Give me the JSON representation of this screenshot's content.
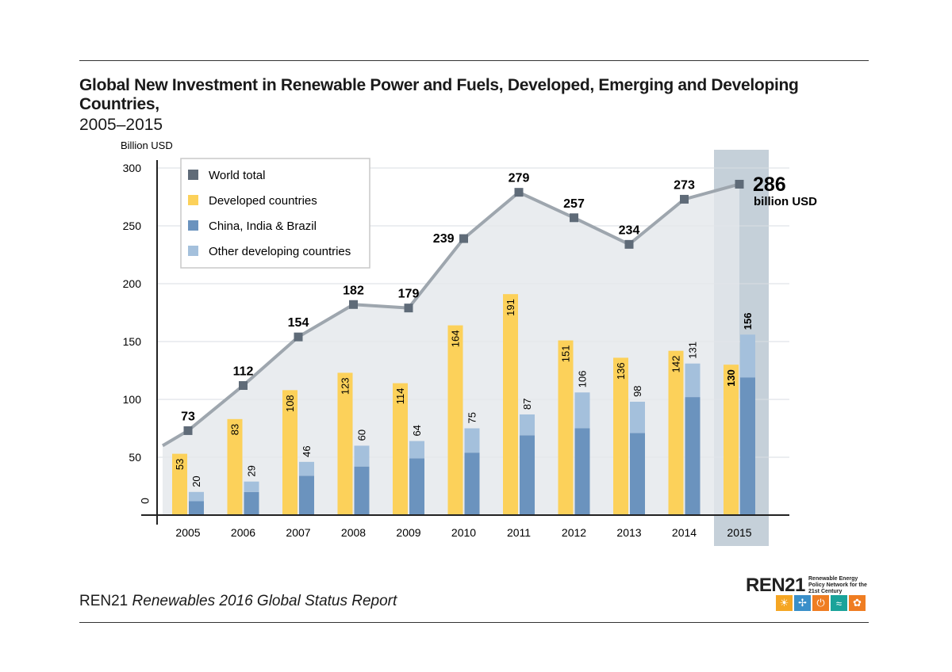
{
  "title": {
    "main": "Global New Investment in Renewable Power and Fuels, Developed, Emerging and Developing Countries,",
    "sub": "2005–2015"
  },
  "footer": {
    "org": "REN21",
    "publication": "Renewables 2016 Global Status Report"
  },
  "logo": {
    "word": "REN21",
    "tagline": "Renewable Energy Policy Network for the 21st Century",
    "icons": [
      {
        "name": "sun-icon",
        "glyph": "☀",
        "color": "#f5a623"
      },
      {
        "name": "wind-icon",
        "glyph": "✢",
        "color": "#3a8fc9"
      },
      {
        "name": "power-icon",
        "glyph": "⏻",
        "color": "#ef7d22"
      },
      {
        "name": "water-icon",
        "glyph": "≈",
        "color": "#1aa39a"
      },
      {
        "name": "leaf-icon",
        "glyph": "✿",
        "color": "#ef7d22"
      }
    ]
  },
  "chart_data": {
    "type": "bar",
    "ylabel": "Billion USD",
    "ylim": [
      0,
      300
    ],
    "yticks": [
      50,
      100,
      150,
      200,
      250,
      300
    ],
    "baseline_label": "0",
    "categories": [
      "2005",
      "2006",
      "2007",
      "2008",
      "2009",
      "2010",
      "2011",
      "2012",
      "2013",
      "2014",
      "2015"
    ],
    "series": [
      {
        "name": "Developed countries",
        "color": "#fcd15a",
        "values": [
          53,
          83,
          108,
          123,
          114,
          164,
          191,
          151,
          136,
          142,
          130
        ]
      },
      {
        "name": "China, India & Brazil",
        "color": "#6b93be",
        "values": [
          12,
          20,
          34,
          42,
          49,
          54,
          69,
          75,
          71,
          102,
          119
        ]
      },
      {
        "name": "Other developing countries",
        "color": "#a4c0dc",
        "values": [
          8,
          9,
          12,
          18,
          15,
          21,
          18,
          31,
          27,
          29,
          37
        ]
      }
    ],
    "developing_totals": [
      20,
      29,
      46,
      60,
      64,
      75,
      87,
      106,
      98,
      131,
      156
    ],
    "world_total": {
      "name": "World total",
      "color": "#5f6b78",
      "values": [
        73,
        112,
        154,
        182,
        179,
        239,
        279,
        257,
        234,
        273,
        286
      ]
    },
    "highlight": {
      "category": "2015",
      "value_text": "286",
      "unit_text": "billion USD"
    },
    "legend_position": "top-left",
    "grid": true
  }
}
